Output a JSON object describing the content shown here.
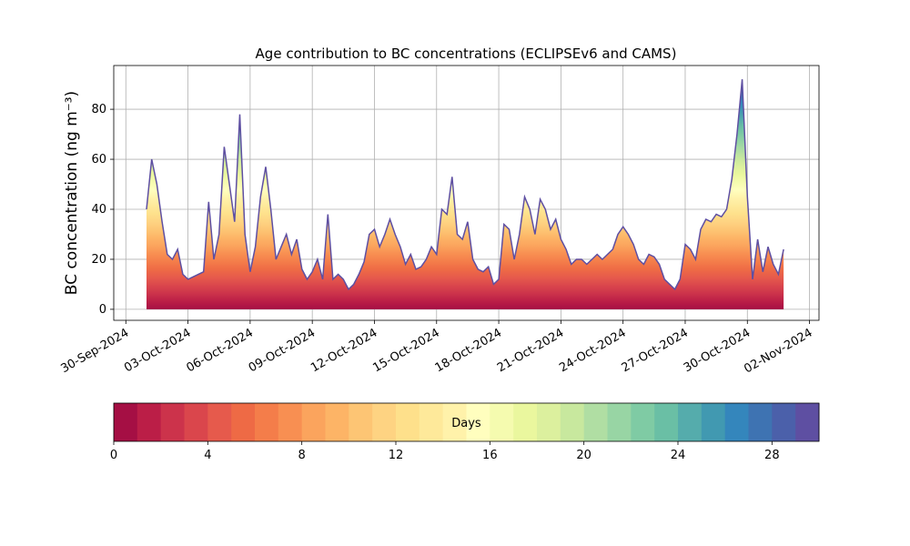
{
  "chart_data": {
    "type": "area",
    "title": "Age contribution to BC concentrations (ECLIPSEv6 and CAMS)",
    "y_label": "BC concentration (ng m⁻³)",
    "x": [
      "2024-10-01 00:00",
      "2024-10-01 06:00",
      "2024-10-01 12:00",
      "2024-10-01 18:00",
      "2024-10-02 00:00",
      "2024-10-02 06:00",
      "2024-10-02 12:00",
      "2024-10-02 18:00",
      "2024-10-03 00:00",
      "2024-10-03 06:00",
      "2024-10-03 12:00",
      "2024-10-03 18:00",
      "2024-10-04 00:00",
      "2024-10-04 06:00",
      "2024-10-04 12:00",
      "2024-10-04 18:00",
      "2024-10-05 00:00",
      "2024-10-05 06:00",
      "2024-10-05 12:00",
      "2024-10-05 18:00",
      "2024-10-06 00:00",
      "2024-10-06 06:00",
      "2024-10-06 12:00",
      "2024-10-06 18:00",
      "2024-10-07 00:00",
      "2024-10-07 06:00",
      "2024-10-07 12:00",
      "2024-10-07 18:00",
      "2024-10-08 00:00",
      "2024-10-08 06:00",
      "2024-10-08 12:00",
      "2024-10-08 18:00",
      "2024-10-09 00:00",
      "2024-10-09 06:00",
      "2024-10-09 12:00",
      "2024-10-09 18:00",
      "2024-10-10 00:00",
      "2024-10-10 06:00",
      "2024-10-10 12:00",
      "2024-10-10 18:00",
      "2024-10-11 00:00",
      "2024-10-11 06:00",
      "2024-10-11 12:00",
      "2024-10-11 18:00",
      "2024-10-12 00:00",
      "2024-10-12 06:00",
      "2024-10-12 12:00",
      "2024-10-12 18:00",
      "2024-10-13 00:00",
      "2024-10-13 06:00",
      "2024-10-13 12:00",
      "2024-10-13 18:00",
      "2024-10-14 00:00",
      "2024-10-14 06:00",
      "2024-10-14 12:00",
      "2024-10-14 18:00",
      "2024-10-15 00:00",
      "2024-10-15 06:00",
      "2024-10-15 12:00",
      "2024-10-15 18:00",
      "2024-10-16 00:00",
      "2024-10-16 06:00",
      "2024-10-16 12:00",
      "2024-10-16 18:00",
      "2024-10-17 00:00",
      "2024-10-17 06:00",
      "2024-10-17 12:00",
      "2024-10-17 18:00",
      "2024-10-18 00:00",
      "2024-10-18 06:00",
      "2024-10-18 12:00",
      "2024-10-18 18:00",
      "2024-10-19 00:00",
      "2024-10-19 06:00",
      "2024-10-19 12:00",
      "2024-10-19 18:00",
      "2024-10-20 00:00",
      "2024-10-20 06:00",
      "2024-10-20 12:00",
      "2024-10-20 18:00",
      "2024-10-21 00:00",
      "2024-10-21 06:00",
      "2024-10-21 12:00",
      "2024-10-21 18:00",
      "2024-10-22 00:00",
      "2024-10-22 06:00",
      "2024-10-22 12:00",
      "2024-10-22 18:00",
      "2024-10-23 00:00",
      "2024-10-23 06:00",
      "2024-10-23 12:00",
      "2024-10-23 18:00",
      "2024-10-24 00:00",
      "2024-10-24 06:00",
      "2024-10-24 12:00",
      "2024-10-24 18:00",
      "2024-10-25 00:00",
      "2024-10-25 06:00",
      "2024-10-25 12:00",
      "2024-10-25 18:00",
      "2024-10-26 00:00",
      "2024-10-26 06:00",
      "2024-10-26 12:00",
      "2024-10-26 18:00",
      "2024-10-27 00:00",
      "2024-10-27 06:00",
      "2024-10-27 12:00",
      "2024-10-27 18:00",
      "2024-10-28 00:00",
      "2024-10-28 06:00",
      "2024-10-28 12:00",
      "2024-10-28 18:00",
      "2024-10-29 00:00",
      "2024-10-29 06:00",
      "2024-10-29 12:00",
      "2024-10-29 18:00",
      "2024-10-30 00:00",
      "2024-10-30 06:00",
      "2024-10-30 12:00",
      "2024-10-30 18:00",
      "2024-10-31 00:00",
      "2024-10-31 06:00",
      "2024-10-31 12:00",
      "2024-10-31 18:00"
    ],
    "values": [
      40,
      60,
      50,
      35,
      22,
      20,
      24,
      14,
      12,
      13,
      14,
      15,
      43,
      20,
      30,
      65,
      50,
      35,
      78,
      30,
      15,
      25,
      45,
      57,
      40,
      20,
      25,
      30,
      22,
      28,
      16,
      12,
      15,
      20,
      12,
      38,
      12,
      14,
      12,
      8,
      10,
      14,
      19,
      30,
      32,
      25,
      30,
      36,
      30,
      25,
      18,
      22,
      16,
      17,
      20,
      25,
      22,
      40,
      38,
      53,
      30,
      28,
      35,
      20,
      16,
      15,
      17,
      10,
      12,
      34,
      32,
      20,
      30,
      45,
      40,
      30,
      44,
      40,
      32,
      36,
      28,
      24,
      18,
      20,
      20,
      18,
      20,
      22,
      20,
      22,
      24,
      30,
      33,
      30,
      26,
      20,
      18,
      22,
      21,
      18,
      12,
      10,
      8,
      12,
      26,
      24,
      20,
      32,
      36,
      35,
      38,
      37,
      40,
      52,
      70,
      92,
      45,
      12,
      28,
      15,
      25,
      18,
      14,
      24
    ],
    "xlim": [
      "2024-09-29 10:00",
      "2024-11-02 11:00"
    ],
    "xticks": [
      {
        "value": "2024-09-30",
        "label": "30-Sep-2024"
      },
      {
        "value": "2024-10-03",
        "label": "03-Oct-2024"
      },
      {
        "value": "2024-10-06",
        "label": "06-Oct-2024"
      },
      {
        "value": "2024-10-09",
        "label": "09-Oct-2024"
      },
      {
        "value": "2024-10-12",
        "label": "12-Oct-2024"
      },
      {
        "value": "2024-10-15",
        "label": "15-Oct-2024"
      },
      {
        "value": "2024-10-18",
        "label": "18-Oct-2024"
      },
      {
        "value": "2024-10-21",
        "label": "21-Oct-2024"
      },
      {
        "value": "2024-10-24",
        "label": "24-Oct-2024"
      },
      {
        "value": "2024-10-27",
        "label": "27-Oct-2024"
      },
      {
        "value": "2024-10-30",
        "label": "30-Oct-2024"
      },
      {
        "value": "2024-11-02",
        "label": "02-Nov-2024"
      }
    ],
    "ylim": [
      -4.4,
      97.5
    ],
    "yticks": [
      0,
      20,
      40,
      60,
      80
    ],
    "grid": true,
    "colorbar": {
      "label": "Days",
      "lim": [
        0,
        30
      ],
      "ticks": [
        0,
        4,
        8,
        12,
        16,
        20,
        24,
        28
      ],
      "colors": [
        "#a50f44",
        "#bb1e47",
        "#cc334b",
        "#da464c",
        "#e65a4c",
        "#ee6a45",
        "#f47d4a",
        "#f88f52",
        "#fba45d",
        "#fdb466",
        "#fdc574",
        "#fed382",
        "#fee08b",
        "#fee99a",
        "#fff2aa",
        "#fffebe",
        "#f5fbaf",
        "#eaf79e",
        "#dcf09e",
        "#c8e89e",
        "#b0dea3",
        "#98d5a4",
        "#7fcba4",
        "#6abfa5",
        "#55acac",
        "#4199b1",
        "#3486bc",
        "#3e73b2",
        "#4b60aa",
        "#5e4fa2"
      ]
    }
  }
}
